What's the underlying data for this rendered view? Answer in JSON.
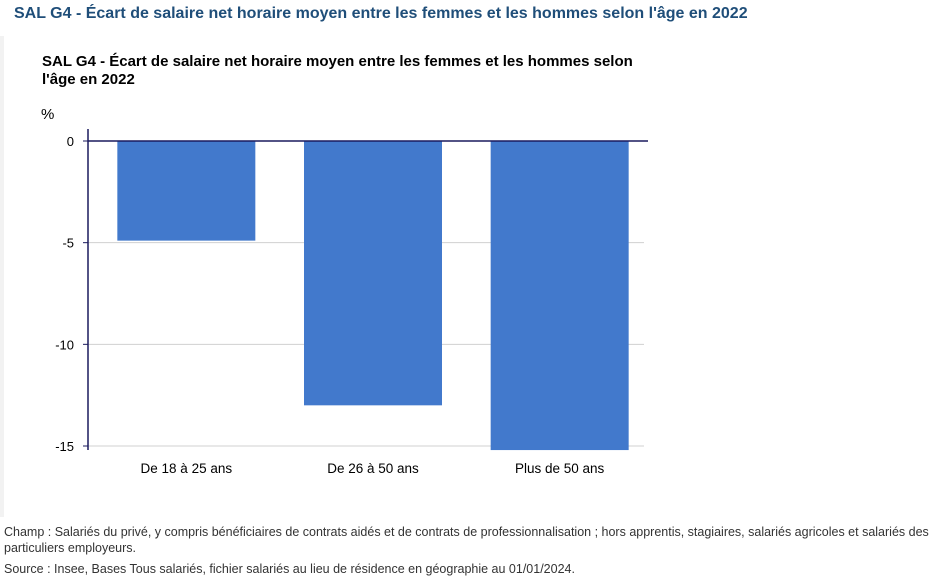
{
  "page": {
    "heading": "SAL G4 - Écart de salaire net horaire moyen entre les femmes et les hommes selon l'âge en 2022"
  },
  "chart_data": {
    "type": "bar",
    "title": "SAL G4 - Écart de salaire net horaire moyen entre les femmes et les hommes selon l'âge en 2022",
    "ylabel": "%",
    "xlabel": "",
    "categories": [
      "De 18 à 25 ans",
      "De 26 à 50 ans",
      "Plus de 50 ans"
    ],
    "values": [
      -4.9,
      -13.0,
      -15.2
    ],
    "ylim": [
      -15,
      0
    ],
    "yticks": [
      0,
      -5,
      -10,
      -15
    ],
    "ytick_labels": [
      "0",
      "-5",
      "-10",
      "-15"
    ],
    "grid": true,
    "legend": "none",
    "colors": {
      "bar": "#4279cc",
      "zero_line": "#1a1a5e",
      "grid": "#d0d0d0"
    }
  },
  "footnotes": {
    "champ": "Champ : Salariés du privé, y compris bénéficiaires de contrats aidés et de contrats de professionnalisation ; hors apprentis, stagiaires, salariés agricoles et salariés des particuliers employeurs.",
    "source": "Source : Insee, Bases Tous salariés, fichier salariés au lieu de résidence en géographie au 01/01/2024."
  }
}
